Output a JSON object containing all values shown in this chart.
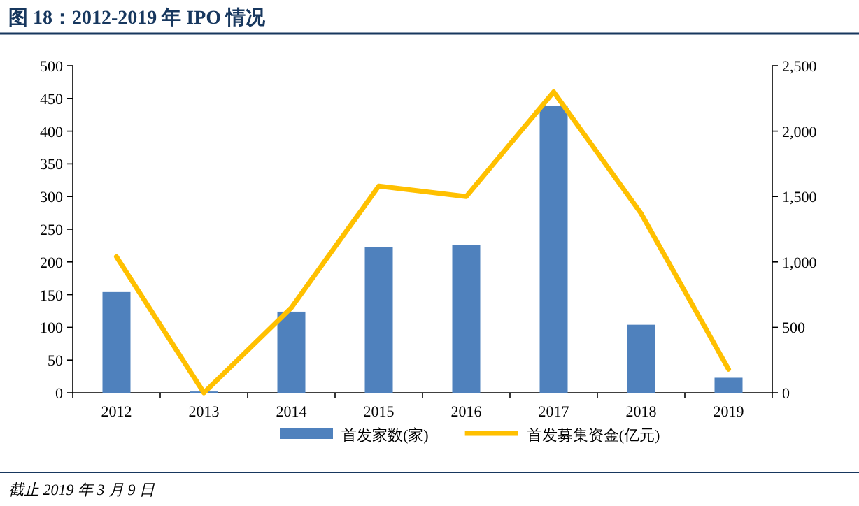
{
  "chart_data": {
    "type": "bar",
    "title": "图 18：2012-2019 年 IPO 情况",
    "categories": [
      "2012",
      "2013",
      "2014",
      "2015",
      "2016",
      "2017",
      "2018",
      "2019"
    ],
    "series": [
      {
        "name": "首发家数(家)",
        "color": "#4f81bd",
        "values": [
          154,
          2,
          124,
          223,
          226,
          439,
          104,
          23
        ]
      },
      {
        "name": "首发募集资金(亿元)",
        "type": "line",
        "axis": "y2",
        "color": "#ffc000",
        "values": [
          1040,
          0,
          650,
          1580,
          1500,
          2300,
          1370,
          180
        ]
      }
    ],
    "ylim": [
      0,
      500
    ],
    "yticks": [
      0,
      50,
      100,
      150,
      200,
      250,
      300,
      350,
      400,
      450,
      500
    ],
    "y2lim": [
      0,
      2500
    ],
    "y2ticks": [
      0,
      500,
      {
        "value": 1000,
        "label": "1,000"
      },
      {
        "value": 1500,
        "label": "1,500"
      },
      {
        "value": 2000,
        "label": "2,000"
      },
      {
        "value": 2500,
        "label": "2,500"
      }
    ],
    "legend": "bottom",
    "grid": false,
    "annotations": [
      "截止 2019 年 3 月 9 日"
    ]
  }
}
